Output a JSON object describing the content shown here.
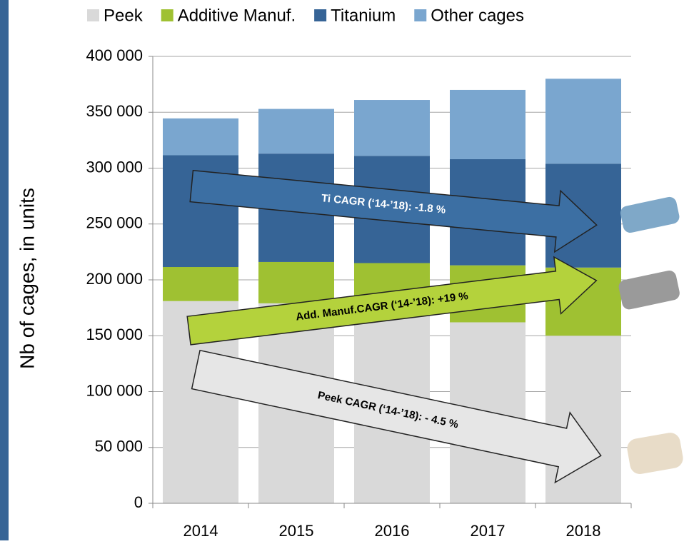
{
  "chart_data": {
    "type": "stacked-bar",
    "y_axis_label": "Nb of cages, in units",
    "categories": [
      "2014",
      "2015",
      "2016",
      "2017",
      "2018"
    ],
    "series": [
      {
        "name": "Peek",
        "color": "#d9d9d9",
        "values": [
          181000,
          179000,
          170000,
          162000,
          150000
        ]
      },
      {
        "name": "Additive Manuf.",
        "color": "#9fc132",
        "values": [
          30500,
          37000,
          45000,
          51000,
          61000
        ]
      },
      {
        "name": "Titanium",
        "color": "#366496",
        "values": [
          100000,
          97000,
          96000,
          95000,
          93000
        ]
      },
      {
        "name": "Other cages",
        "color": "#7aa6cf",
        "values": [
          33000,
          40000,
          50000,
          62000,
          76000
        ]
      }
    ],
    "ylim": [
      0,
      400000
    ],
    "yticks": [
      0,
      {
        "value": 50000,
        "label": "50 000"
      },
      {
        "value": 100000,
        "label": "100 000"
      },
      {
        "value": 150000,
        "label": "150 000"
      },
      {
        "value": 200000,
        "label": "200 000"
      },
      {
        "value": 250000,
        "label": "250 000"
      },
      {
        "value": 300000,
        "label": "300 000"
      },
      {
        "value": 350000,
        "label": "350 000"
      },
      {
        "value": 400000,
        "label": "400 000"
      }
    ],
    "grid": true,
    "annotations": [
      "Ti  CAGR (‘14-’18):  -1.8  %",
      "Add. Manuf.CAGR (‘14-’18): +19 %",
      "Peek  CAGR (‘14-’18): - 4.5 %"
    ]
  }
}
